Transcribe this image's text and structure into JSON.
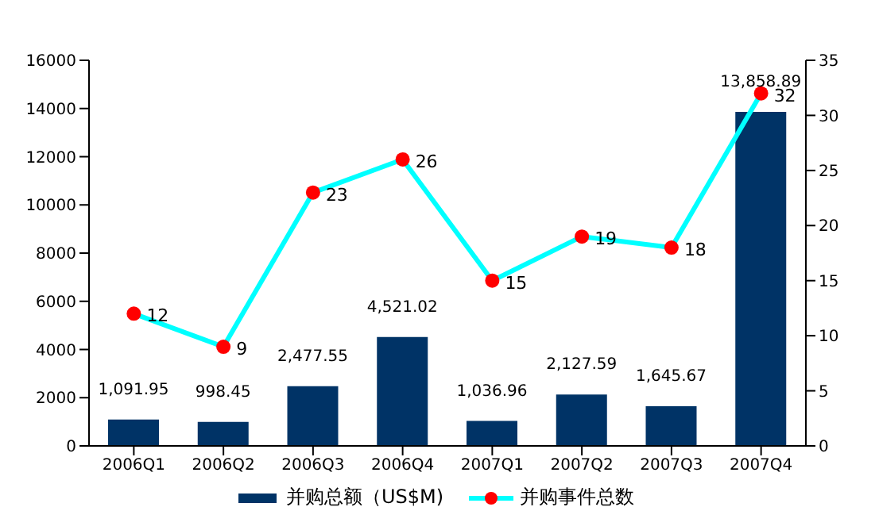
{
  "chart_data": {
    "type": "bar",
    "categories": [
      "2006Q1",
      "2006Q2",
      "2006Q3",
      "2006Q4",
      "2007Q1",
      "2007Q2",
      "2007Q3",
      "2007Q4"
    ],
    "series": [
      {
        "name": "并购总额（US$M)",
        "color": "#003366",
        "values": [
          1091.95,
          998.45,
          2477.55,
          4521.02,
          1036.96,
          2127.59,
          1645.67,
          13858.89
        ],
        "value_labels": [
          "1,091.95",
          "998.45",
          "2,477.55",
          "4,521.02",
          "1,036.96",
          "2,127.59",
          "1,645.67",
          "13,858.89"
        ]
      },
      {
        "name": "并购事件总数",
        "type": "line",
        "axis": "y2",
        "color": "#00ffff",
        "colors": [
          "#ff0000",
          "#ff0000",
          "#ff0000",
          "#ff0000",
          "#ff0000",
          "#ff0000",
          "#ff0000",
          "#ff0000"
        ],
        "values": [
          12,
          9,
          23,
          26,
          15,
          19,
          18,
          32
        ],
        "value_labels": [
          "12",
          "9",
          "23",
          "26",
          "15",
          "19",
          "18",
          "32"
        ]
      }
    ],
    "ylim": [
      0,
      16000
    ],
    "yticks": [
      0,
      2000,
      4000,
      6000,
      8000,
      10000,
      12000,
      14000,
      16000
    ],
    "y2lim": [
      0,
      35
    ],
    "y2ticks": [
      0,
      5,
      10,
      15,
      20,
      25,
      30,
      35
    ],
    "grid": false,
    "legend": "bottom",
    "marker": "circle",
    "line_style": "solid"
  }
}
